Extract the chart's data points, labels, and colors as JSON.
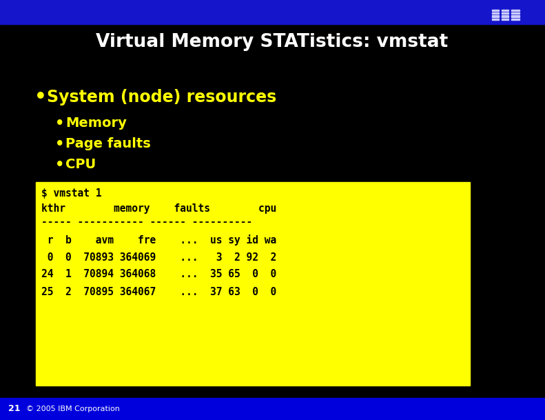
{
  "title": "Virtual Memory STATistics: vmstat",
  "background_color": "#000000",
  "header_bar_color": "#1515cc",
  "title_color": "#ffffff",
  "bullet_color": "#ffff00",
  "bullet1": "System (node) resources",
  "bullet2": "Memory",
  "bullet3": "Page faults",
  "bullet4": "CPU",
  "code_bg_color": "#ffff00",
  "code_text_color": "#000000",
  "code_lines": [
    "$ vmstat 1",
    "kthr        memory    faults        cpu",
    "----- ----------- ------ ----------",
    " r  b    avm    fre    ...  us sy id wa",
    " 0  0  70893 364069    ...   3  2 92  2",
    "24  1  70894 364068    ...  35 65  0  0",
    "25  2  70895 364067    ...  37 63  0  0"
  ],
  "footer_color": "#0000dd",
  "footer_text_color": "#ffffff",
  "page_number": "21",
  "footer_small": "© 2005 IBM Corporation",
  "ibm_stripe_color": "#aaaaff",
  "ibm_bg_color": "#1515cc"
}
